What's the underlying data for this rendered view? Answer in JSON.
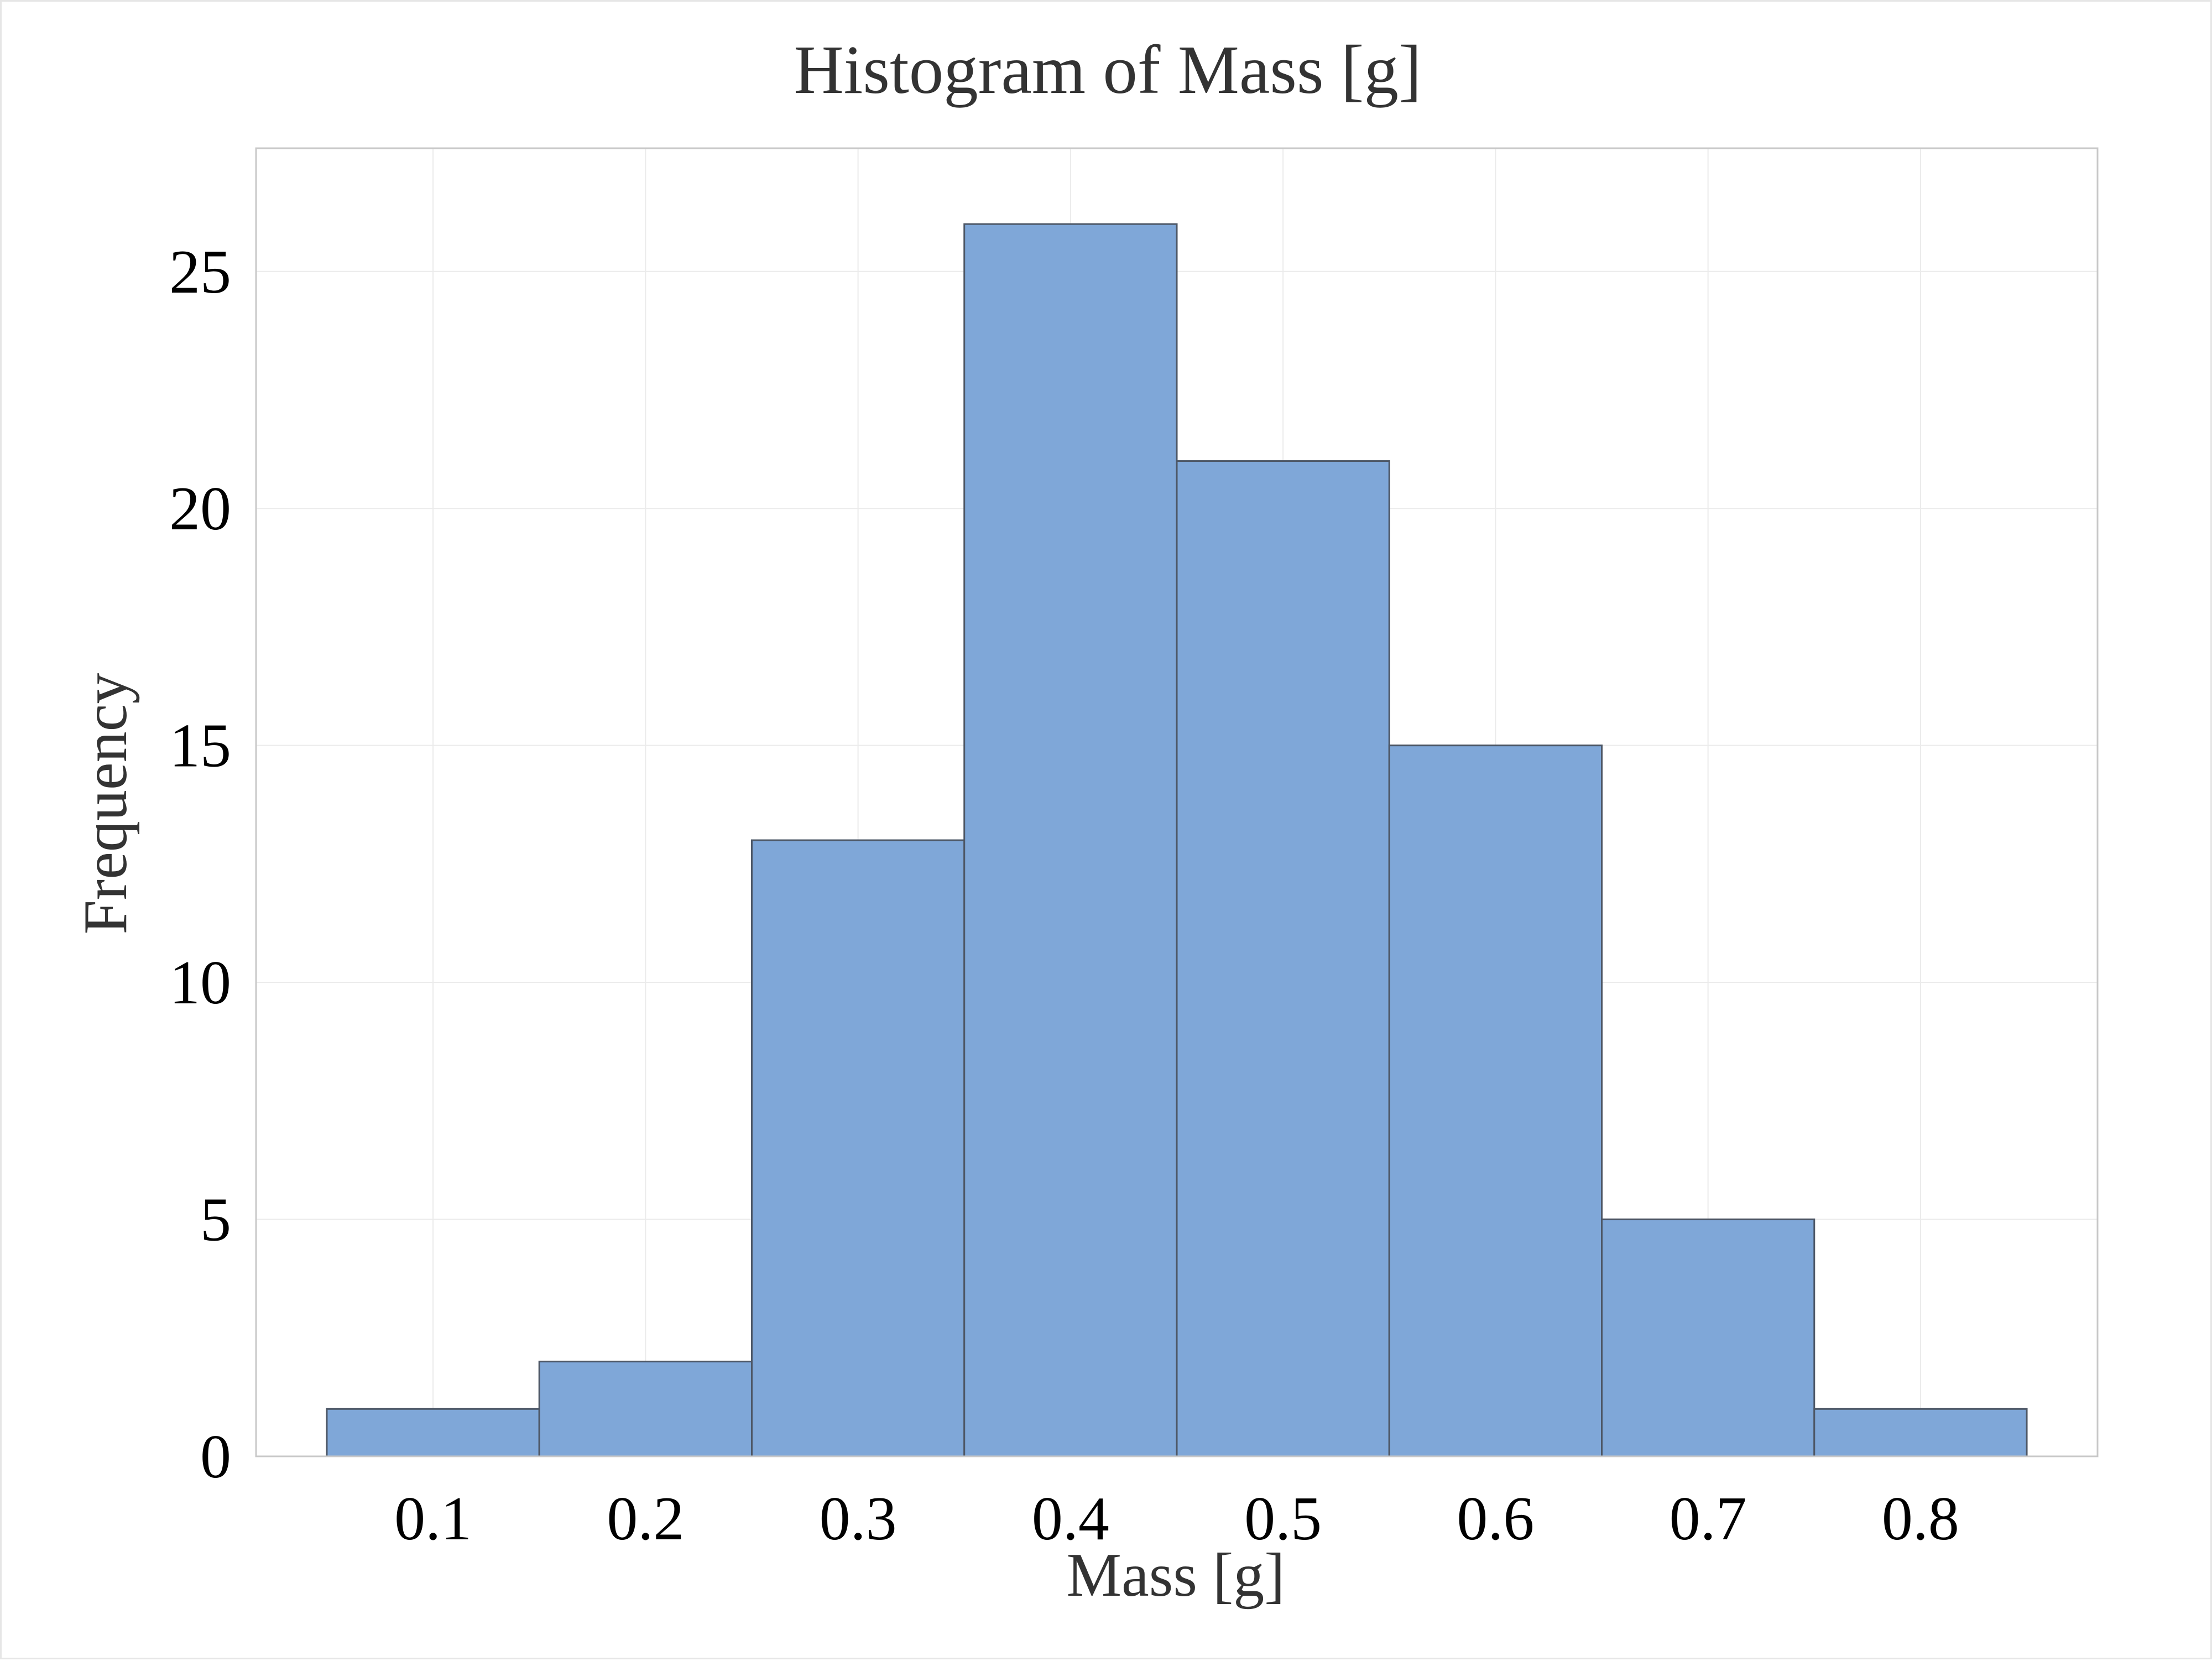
{
  "chart_data": {
    "type": "bar",
    "title": "Histogram of Mass [g]",
    "xlabel": "Mass [g]",
    "ylabel": "Frequency",
    "bin_width": 0.1,
    "bins": [
      {
        "x0": 0.05,
        "x1": 0.15,
        "count": 1
      },
      {
        "x0": 0.15,
        "x1": 0.25,
        "count": 2
      },
      {
        "x0": 0.25,
        "x1": 0.35,
        "count": 13
      },
      {
        "x0": 0.35,
        "x1": 0.45,
        "count": 26
      },
      {
        "x0": 0.45,
        "x1": 0.55,
        "count": 21
      },
      {
        "x0": 0.55,
        "x1": 0.65,
        "count": 15
      },
      {
        "x0": 0.65,
        "x1": 0.75,
        "count": 5
      },
      {
        "x0": 0.75,
        "x1": 0.85,
        "count": 1
      }
    ],
    "xlim": [
      0.0167,
      0.8833
    ],
    "ylim": [
      0,
      27.6
    ],
    "xticks": [
      0.1,
      0.2,
      0.3,
      0.4,
      0.5,
      0.6,
      0.7,
      0.8
    ],
    "xtick_labels": [
      "0.1",
      "0.2",
      "0.3",
      "0.4",
      "0.5",
      "0.6",
      "0.7",
      "0.8"
    ],
    "yticks": [
      0,
      5,
      10,
      15,
      20,
      25
    ],
    "ytick_labels": [
      "0",
      "5",
      "10",
      "15",
      "20",
      "25"
    ],
    "grid": true,
    "legend": "none",
    "colors": {
      "bar_fill": "#7fa7d8",
      "bar_edge": "#4d5766",
      "grid": "#ebebeb",
      "frame": "#c8c8c8",
      "title": "#333333",
      "tick_text": "#000000"
    }
  }
}
